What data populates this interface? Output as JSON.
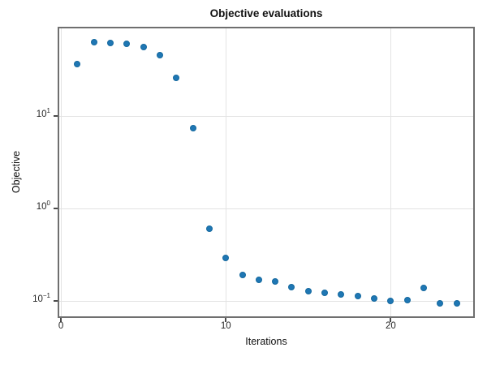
{
  "chart_data": {
    "type": "scatter",
    "title": "Objective evaluations",
    "xlabel": "Iterations",
    "ylabel": "Objective",
    "yscale": "log",
    "grid": true,
    "legend": "none",
    "xlim": [
      -0.1,
      25.0
    ],
    "ylim": [
      0.068,
      88.5
    ],
    "x": [
      1,
      2,
      3,
      4,
      5,
      6,
      7,
      8,
      9,
      10,
      11,
      12,
      13,
      14,
      15,
      16,
      17,
      18,
      19,
      20,
      21,
      22,
      23,
      24
    ],
    "y": [
      36.2,
      62.8,
      61.9,
      60.0,
      56.0,
      45.7,
      25.8,
      7.4,
      0.6,
      0.294,
      0.19,
      0.17,
      0.163,
      0.141,
      0.127,
      0.122,
      0.118,
      0.113,
      0.106,
      0.1,
      0.102,
      0.138,
      0.094,
      0.094
    ],
    "xticks": [
      {
        "value": 0,
        "label": "0"
      },
      {
        "value": 10,
        "label": "10"
      },
      {
        "value": 20,
        "label": "20"
      }
    ],
    "yticks": [
      {
        "value": 10,
        "base": "10",
        "exponent": "1"
      },
      {
        "value": 1,
        "base": "10",
        "exponent": "0"
      },
      {
        "value": 0.1,
        "base": "10",
        "exponent": "−1"
      }
    ],
    "colors": {
      "marker_fill": "#1f77b4",
      "marker_edge": "#14689e",
      "grid": "#e3e3e3",
      "spine": "#6f6f6f",
      "tick": "#4a4a4a",
      "text": "#111111"
    }
  }
}
